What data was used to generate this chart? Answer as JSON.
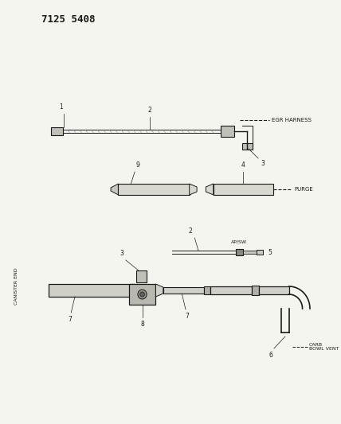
{
  "title": "7125 5408",
  "bg_color": "#f5f5f0",
  "line_color": "#1a1a1a",
  "text_color": "#1a1a1a",
  "canister_end_label": "CANISTER END",
  "egr_harness": "EGR HARNESS",
  "purge": "PURGE",
  "ap_sw": "AP/SW",
  "carb_bowl_vent": "CARB\nBOWL VENT",
  "fig_w": 4.28,
  "fig_h": 5.33,
  "dpi": 100
}
